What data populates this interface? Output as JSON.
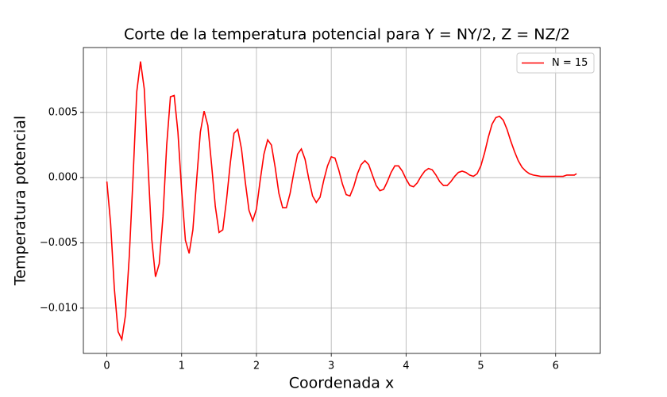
{
  "chart_data": {
    "type": "line",
    "title": "Corte de la temperatura potencial para Y = NY/2, Z = NZ/2",
    "x_label": "Coordenada x",
    "y_label": "Temperatura potencial",
    "x": [
      0.0,
      0.05,
      0.1,
      0.15,
      0.2,
      0.25,
      0.3,
      0.35,
      0.4,
      0.45,
      0.5,
      0.55,
      0.6,
      0.65,
      0.7,
      0.75,
      0.8,
      0.85,
      0.9,
      0.95,
      1.0,
      1.05,
      1.1,
      1.15,
      1.2,
      1.25,
      1.3,
      1.35,
      1.4,
      1.45,
      1.5,
      1.55,
      1.6,
      1.65,
      1.7,
      1.75,
      1.8,
      1.85,
      1.9,
      1.95,
      2.0,
      2.05,
      2.1,
      2.15,
      2.2,
      2.25,
      2.3,
      2.35,
      2.4,
      2.45,
      2.5,
      2.55,
      2.6,
      2.65,
      2.7,
      2.75,
      2.8,
      2.85,
      2.9,
      2.95,
      3.0,
      3.05,
      3.1,
      3.15,
      3.2,
      3.25,
      3.3,
      3.35,
      3.4,
      3.45,
      3.5,
      3.55,
      3.6,
      3.65,
      3.7,
      3.75,
      3.8,
      3.85,
      3.9,
      3.95,
      4.0,
      4.05,
      4.1,
      4.15,
      4.2,
      4.25,
      4.3,
      4.35,
      4.4,
      4.45,
      4.5,
      4.55,
      4.6,
      4.65,
      4.7,
      4.75,
      4.8,
      4.85,
      4.9,
      4.95,
      5.0,
      5.05,
      5.1,
      5.15,
      5.2,
      5.25,
      5.3,
      5.35,
      5.4,
      5.45,
      5.5,
      5.55,
      5.6,
      5.65,
      5.7,
      5.75,
      5.8,
      5.85,
      5.9,
      5.95,
      6.0,
      6.05,
      6.1,
      6.15,
      6.2,
      6.25,
      6.28
    ],
    "series": [
      {
        "name": "N = 15",
        "color": "#ff0000",
        "values": [
          -0.0003,
          -0.0035,
          -0.0085,
          -0.0118,
          -0.0124,
          -0.0105,
          -0.006,
          0.0,
          0.0066,
          0.0089,
          0.0068,
          0.001,
          -0.0047,
          -0.0076,
          -0.0066,
          -0.003,
          0.0025,
          0.0062,
          0.0063,
          0.0035,
          -0.001,
          -0.0048,
          -0.0058,
          -0.004,
          -0.0002,
          0.0035,
          0.0051,
          0.004,
          0.001,
          -0.0022,
          -0.0042,
          -0.004,
          -0.0017,
          0.0011,
          0.0034,
          0.0037,
          0.0022,
          -0.0003,
          -0.0025,
          -0.0033,
          -0.0024,
          -0.0002,
          0.0018,
          0.0029,
          0.0025,
          0.0008,
          -0.0012,
          -0.0023,
          -0.0023,
          -0.0012,
          0.0004,
          0.0018,
          0.0022,
          0.0014,
          -0.0001,
          -0.0014,
          -0.0019,
          -0.0015,
          -0.0002,
          0.0009,
          0.0016,
          0.0015,
          0.0006,
          -0.0005,
          -0.0013,
          -0.0014,
          -0.0007,
          0.0003,
          0.001,
          0.0013,
          0.001,
          0.0002,
          -0.0006,
          -0.001,
          -0.0009,
          -0.0003,
          0.0004,
          0.0009,
          0.0009,
          0.0005,
          -0.0001,
          -0.0006,
          -0.0007,
          -0.0004,
          0.0001,
          0.0005,
          0.0007,
          0.0006,
          0.0002,
          -0.0003,
          -0.0006,
          -0.0006,
          -0.0003,
          0.0001,
          0.0004,
          0.0005,
          0.0004,
          0.0002,
          0.0001,
          0.0003,
          0.0009,
          0.0019,
          0.0031,
          0.0041,
          0.0046,
          0.0047,
          0.0044,
          0.0037,
          0.0028,
          0.002,
          0.0013,
          0.0008,
          0.0005,
          0.0003,
          0.0002,
          0.00015,
          0.0001,
          0.0001,
          0.0001,
          0.0001,
          0.0001,
          0.0001,
          0.0001,
          0.0002,
          0.0002,
          0.0002,
          0.0003
        ]
      }
    ],
    "xlim": [
      -0.314,
      6.597
    ],
    "xticks": [
      0,
      1,
      2,
      3,
      4,
      5,
      6
    ],
    "ylim": [
      -0.01347,
      0.00997
    ],
    "yticks": [
      {
        "value": -0.01,
        "label": "−0.010"
      },
      {
        "value": -0.005,
        "label": "−0.005"
      },
      {
        "value": 0,
        "label": "0.000"
      },
      {
        "value": 0.005,
        "label": "0.005"
      }
    ],
    "grid": true,
    "legend": "upper right"
  }
}
